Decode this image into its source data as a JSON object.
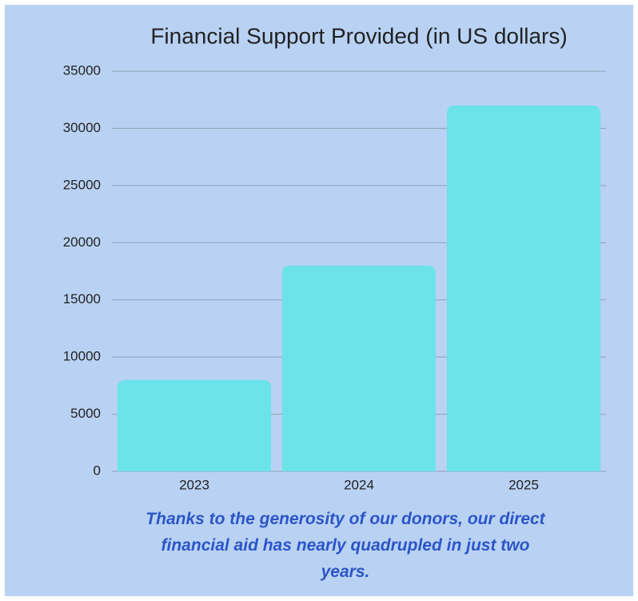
{
  "chart_data": {
    "type": "bar",
    "title": "Financial Support Provided (in US dollars)",
    "categories": [
      "2023",
      "2024",
      "2025"
    ],
    "values": [
      8000,
      18000,
      32000
    ],
    "color": "#6be3e8",
    "ylim": [
      0,
      35000
    ],
    "yticks": [
      0,
      5000,
      10000,
      15000,
      20000,
      25000,
      30000,
      35000
    ],
    "grid": true,
    "annotation": "Thanks to the generosity of our donors, our direct financial aid has nearly quadrupled in just two years."
  }
}
